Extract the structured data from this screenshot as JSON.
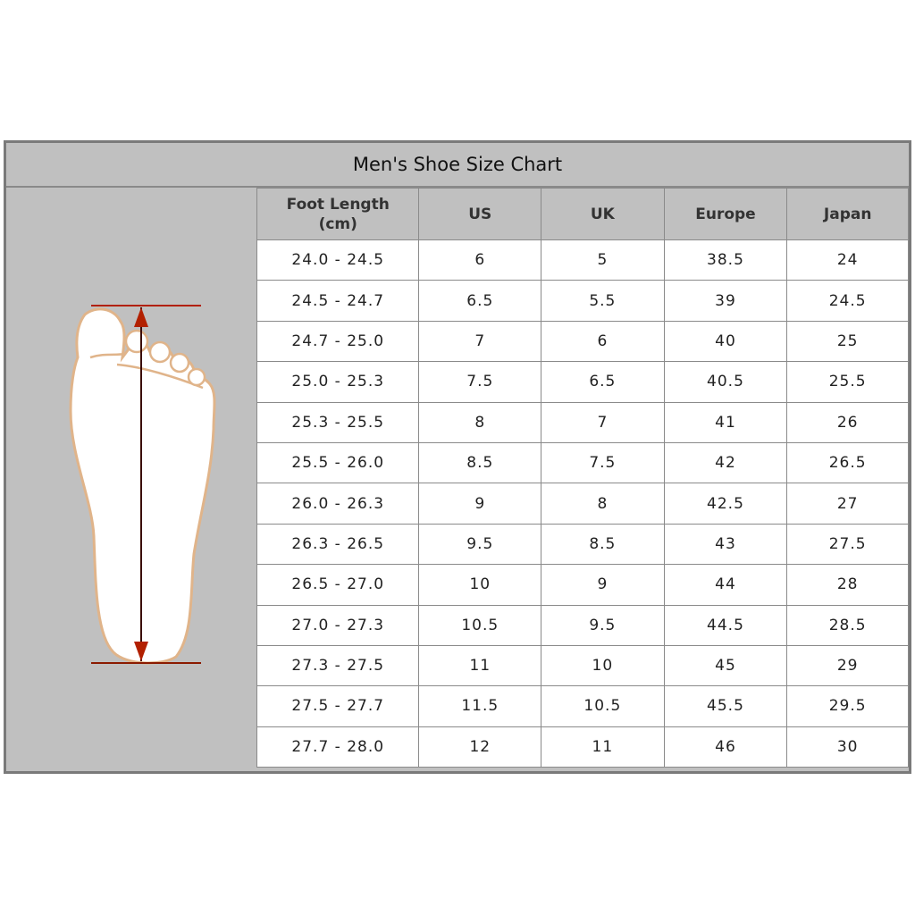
{
  "title": "Men's Shoe Size Chart",
  "headers": [
    "Foot Length\n(cm)",
    "US",
    "UK",
    "Europe",
    "Japan"
  ],
  "rows": [
    [
      "24.0 - 24.5",
      "6",
      "5",
      "38.5",
      "24"
    ],
    [
      "24.5 - 24.7",
      "6.5",
      "5.5",
      "39",
      "24.5"
    ],
    [
      "24.7 - 25.0",
      "7",
      "6",
      "40",
      "25"
    ],
    [
      "25.0 - 25.3",
      "7.5",
      "6.5",
      "40.5",
      "25.5"
    ],
    [
      "25.3 - 25.5",
      "8",
      "7",
      "41",
      "26"
    ],
    [
      "25.5 - 26.0",
      "8.5",
      "7.5",
      "42",
      "26.5"
    ],
    [
      "26.0 - 26.3",
      "9",
      "8",
      "42.5",
      "27"
    ],
    [
      "26.3 - 26.5",
      "9.5",
      "8.5",
      "43",
      "27.5"
    ],
    [
      "26.5 - 27.0",
      "10",
      "9",
      "44",
      "28"
    ],
    [
      "27.0 - 27.3",
      "10.5",
      "9.5",
      "44.5",
      "28.5"
    ],
    [
      "27.3 - 27.5",
      "11",
      "10",
      "45",
      "29"
    ],
    [
      "27.5 - 27.7",
      "11.5",
      "10.5",
      "45.5",
      "29.5"
    ],
    [
      "27.7 - 28.0",
      "12",
      "11",
      "46",
      "30"
    ]
  ],
  "colors": {
    "panel": "#c0c0c0",
    "border": "#8a8a8a",
    "foot_outline": "#e0b48a",
    "arrow": "#8b1a00"
  },
  "illustration_icon": "foot-length-measurement-icon"
}
